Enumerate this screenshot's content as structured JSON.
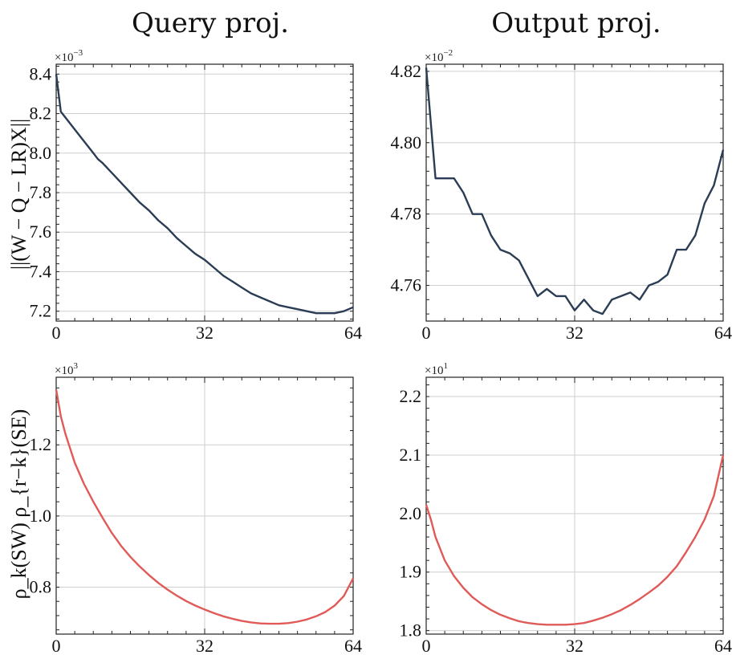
{
  "titles": {
    "left": "Query proj.",
    "right": "Output proj."
  },
  "row_labels": {
    "top": "||(W − Q − LR)X||",
    "bottom": "ρ_k(SW) ρ_{r−k}(SE)"
  },
  "chart_data": [
    {
      "type": "line",
      "color": "#2b3d55",
      "multiplier": {
        "base": "×10",
        "exp": "−3"
      },
      "xlim": [
        0,
        64
      ],
      "xticks": [
        "0",
        "32",
        "64"
      ],
      "ylim": [
        7.15,
        8.45
      ],
      "yticks": [
        8.4,
        8.2,
        8.0,
        7.8,
        7.6,
        7.4,
        7.2
      ],
      "ytick_labels": [
        "8.4",
        "8.2",
        "8.0",
        "7.8",
        "7.6",
        "7.4",
        "7.2"
      ],
      "x": [
        0,
        1,
        2,
        4,
        6,
        8,
        9,
        10,
        12,
        14,
        16,
        18,
        20,
        22,
        24,
        26,
        28,
        30,
        32,
        34,
        36,
        38,
        40,
        42,
        44,
        46,
        48,
        50,
        52,
        54,
        56,
        58,
        60,
        62,
        64
      ],
      "y": [
        8.4,
        8.21,
        8.18,
        8.12,
        8.06,
        8.0,
        7.97,
        7.95,
        7.9,
        7.85,
        7.8,
        7.75,
        7.71,
        7.66,
        7.62,
        7.57,
        7.53,
        7.49,
        7.46,
        7.42,
        7.38,
        7.35,
        7.32,
        7.29,
        7.27,
        7.25,
        7.23,
        7.22,
        7.21,
        7.2,
        7.19,
        7.19,
        7.19,
        7.2,
        7.22
      ]
    },
    {
      "type": "line",
      "color": "#2b3d55",
      "multiplier": {
        "base": "×10",
        "exp": "−2"
      },
      "xlim": [
        0,
        64
      ],
      "xticks": [
        "0",
        "32",
        "64"
      ],
      "ylim": [
        4.75,
        4.822
      ],
      "yticks": [
        4.82,
        4.8,
        4.78,
        4.76
      ],
      "ytick_labels": [
        "4.82",
        "4.80",
        "4.78",
        "4.76"
      ],
      "x": [
        0,
        2,
        4,
        6,
        8,
        10,
        12,
        14,
        16,
        18,
        20,
        22,
        24,
        26,
        28,
        30,
        32,
        34,
        36,
        38,
        40,
        42,
        44,
        46,
        48,
        50,
        52,
        54,
        56,
        58,
        60,
        62,
        64
      ],
      "y": [
        4.821,
        4.79,
        4.79,
        4.79,
        4.786,
        4.78,
        4.78,
        4.774,
        4.77,
        4.769,
        4.767,
        4.762,
        4.757,
        4.759,
        4.757,
        4.757,
        4.753,
        4.756,
        4.753,
        4.752,
        4.756,
        4.757,
        4.758,
        4.756,
        4.76,
        4.761,
        4.763,
        4.77,
        4.77,
        4.774,
        4.783,
        4.788,
        4.798
      ]
    },
    {
      "type": "line",
      "color": "#e05a58",
      "multiplier": {
        "base": "×10",
        "exp": "3"
      },
      "xlim": [
        0,
        64
      ],
      "xticks": [
        "0",
        "32",
        "64"
      ],
      "ylim": [
        0.668,
        1.39
      ],
      "yticks": [
        1.2,
        1.0,
        0.8
      ],
      "ytick_labels": [
        "1.2",
        "1.0",
        "0.8"
      ],
      "x": [
        0,
        1,
        2,
        4,
        6,
        8,
        10,
        12,
        14,
        16,
        18,
        20,
        22,
        24,
        26,
        28,
        30,
        32,
        34,
        36,
        38,
        40,
        42,
        44,
        46,
        48,
        50,
        52,
        54,
        56,
        58,
        60,
        62,
        64
      ],
      "y": [
        1.355,
        1.28,
        1.23,
        1.15,
        1.09,
        1.04,
        0.995,
        0.952,
        0.916,
        0.885,
        0.858,
        0.834,
        0.812,
        0.793,
        0.776,
        0.761,
        0.748,
        0.737,
        0.727,
        0.718,
        0.711,
        0.705,
        0.701,
        0.698,
        0.697,
        0.697,
        0.699,
        0.703,
        0.709,
        0.718,
        0.73,
        0.748,
        0.775,
        0.825
      ]
    },
    {
      "type": "line",
      "color": "#e05a58",
      "multiplier": {
        "base": "×10",
        "exp": "1"
      },
      "xlim": [
        0,
        64
      ],
      "xticks": [
        "0",
        "32",
        "64"
      ],
      "ylim": [
        1.794,
        2.233
      ],
      "yticks": [
        2.2,
        2.1,
        2.0,
        1.9,
        1.8
      ],
      "ytick_labels": [
        "2.2",
        "2.1",
        "2.0",
        "1.9",
        "1.8"
      ],
      "x": [
        0,
        1,
        2,
        4,
        6,
        8,
        10,
        12,
        14,
        16,
        18,
        20,
        22,
        24,
        26,
        28,
        30,
        32,
        34,
        36,
        38,
        40,
        42,
        44,
        46,
        48,
        50,
        52,
        54,
        56,
        58,
        60,
        62,
        64
      ],
      "y": [
        2.015,
        1.99,
        1.96,
        1.92,
        1.893,
        1.873,
        1.857,
        1.845,
        1.835,
        1.827,
        1.821,
        1.816,
        1.813,
        1.811,
        1.81,
        1.81,
        1.81,
        1.811,
        1.813,
        1.817,
        1.822,
        1.828,
        1.835,
        1.844,
        1.854,
        1.865,
        1.877,
        1.892,
        1.91,
        1.934,
        1.96,
        1.99,
        2.03,
        2.1
      ]
    }
  ]
}
